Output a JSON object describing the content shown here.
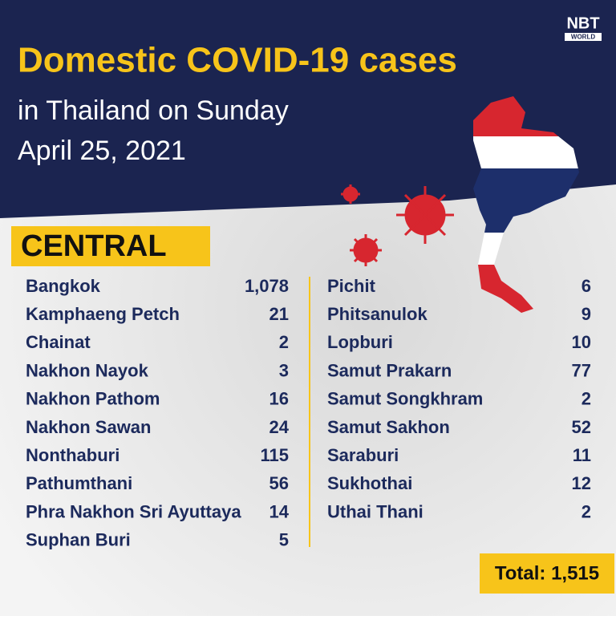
{
  "header": {
    "logo": "NBT",
    "logo_sub": "WORLD",
    "title": "Domestic COVID-19 cases",
    "subtitle_lines": [
      "in Thailand on Sunday",
      "April 25, 2021"
    ]
  },
  "section": "CENTRAL",
  "table": {
    "left": [
      [
        "Bangkok",
        "1,078"
      ],
      [
        "Kamphaeng Petch",
        "21"
      ],
      [
        "Chainat",
        "2"
      ],
      [
        "Nakhon Nayok",
        "3"
      ],
      [
        "Nakhon Pathom",
        "16"
      ],
      [
        "Nakhon Sawan",
        "24"
      ],
      [
        "Nonthaburi",
        "115"
      ],
      [
        "Pathumthani",
        "56"
      ],
      [
        "Phra Nakhon Sri Ayuttaya",
        "14"
      ],
      [
        "Suphan Buri",
        "5"
      ]
    ],
    "right": [
      [
        "Pichit",
        "6"
      ],
      [
        "Phitsanulok",
        "9"
      ],
      [
        "Lopburi",
        "10"
      ],
      [
        "Samut Prakarn",
        "77"
      ],
      [
        "Samut Songkhram",
        "2"
      ],
      [
        "Samut Sakhon",
        "52"
      ],
      [
        "Saraburi",
        "11"
      ],
      [
        "Sukhothai",
        "12"
      ],
      [
        "Uthai Thani",
        "2"
      ]
    ]
  },
  "total": "Total: 1,515"
}
